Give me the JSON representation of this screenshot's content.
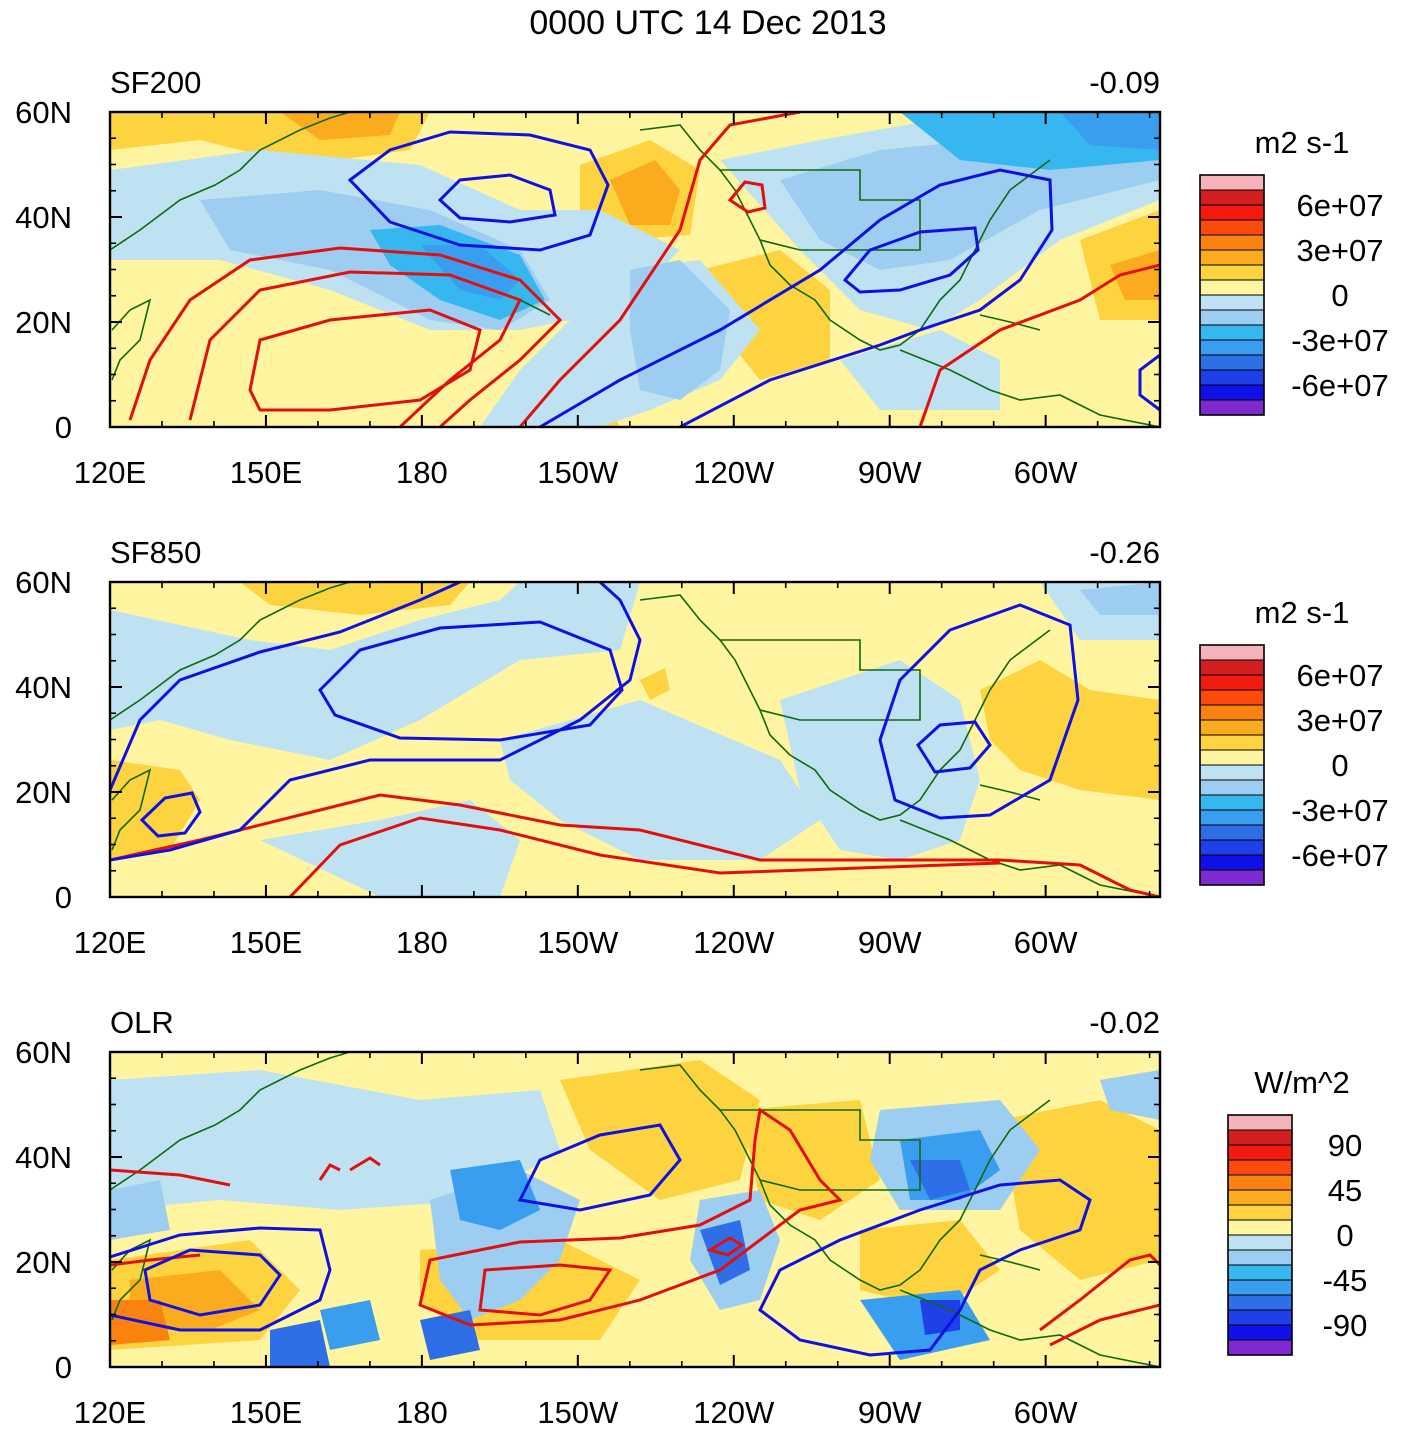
{
  "title": "0000 UTC 14 Dec 2013",
  "chart_data": [
    {
      "type": "heatmap",
      "panel_label": "SF200",
      "correlation": "-0.09",
      "units": "m2 s-1",
      "x_ticks": [
        "120E",
        "150E",
        "180",
        "150W",
        "120W",
        "90W",
        "60W"
      ],
      "y_ticks": [
        "60N",
        "40N",
        "20N",
        "0"
      ],
      "xlim_deg_east": [
        120,
        322
      ],
      "ylim_deg_north": [
        0,
        60
      ],
      "colorbar_labels": [
        "6e+07",
        "3e+07",
        "0",
        "-3e+07",
        "-6e+07"
      ],
      "contour_colors": {
        "positive": "#e01010",
        "negative": "#1010e0"
      }
    },
    {
      "type": "heatmap",
      "panel_label": "SF850",
      "correlation": "-0.26",
      "units": "m2 s-1",
      "x_ticks": [
        "120E",
        "150E",
        "180",
        "150W",
        "120W",
        "90W",
        "60W"
      ],
      "y_ticks": [
        "60N",
        "40N",
        "20N",
        "0"
      ],
      "xlim_deg_east": [
        120,
        322
      ],
      "ylim_deg_north": [
        0,
        60
      ],
      "colorbar_labels": [
        "6e+07",
        "3e+07",
        "0",
        "-3e+07",
        "-6e+07"
      ],
      "contour_colors": {
        "positive": "#e01010",
        "negative": "#1010e0"
      }
    },
    {
      "type": "heatmap",
      "panel_label": "OLR",
      "correlation": "-0.02",
      "units": "W/m^2",
      "x_ticks": [
        "120E",
        "150E",
        "180",
        "150W",
        "120W",
        "90W",
        "60W"
      ],
      "y_ticks": [
        "60N",
        "40N",
        "20N",
        "0"
      ],
      "xlim_deg_east": [
        120,
        322
      ],
      "ylim_deg_north": [
        0,
        60
      ],
      "colorbar_labels": [
        "90",
        "45",
        "0",
        "-45",
        "-90"
      ],
      "contour_colors": {
        "positive": "#e01010",
        "negative": "#1010e0"
      }
    }
  ],
  "colorscale": [
    "#f4b3b8",
    "#d21f1f",
    "#f21b0e",
    "#fb4a0b",
    "#fb820e",
    "#fbab1e",
    "#fdd340",
    "#fff5a0",
    "#bfe2f2",
    "#9dcdf0",
    "#36b7f0",
    "#399ef0",
    "#2e6fe8",
    "#1f40e8",
    "#1010e8",
    "#7e2ad0"
  ],
  "land_color": "#0e6a0e"
}
